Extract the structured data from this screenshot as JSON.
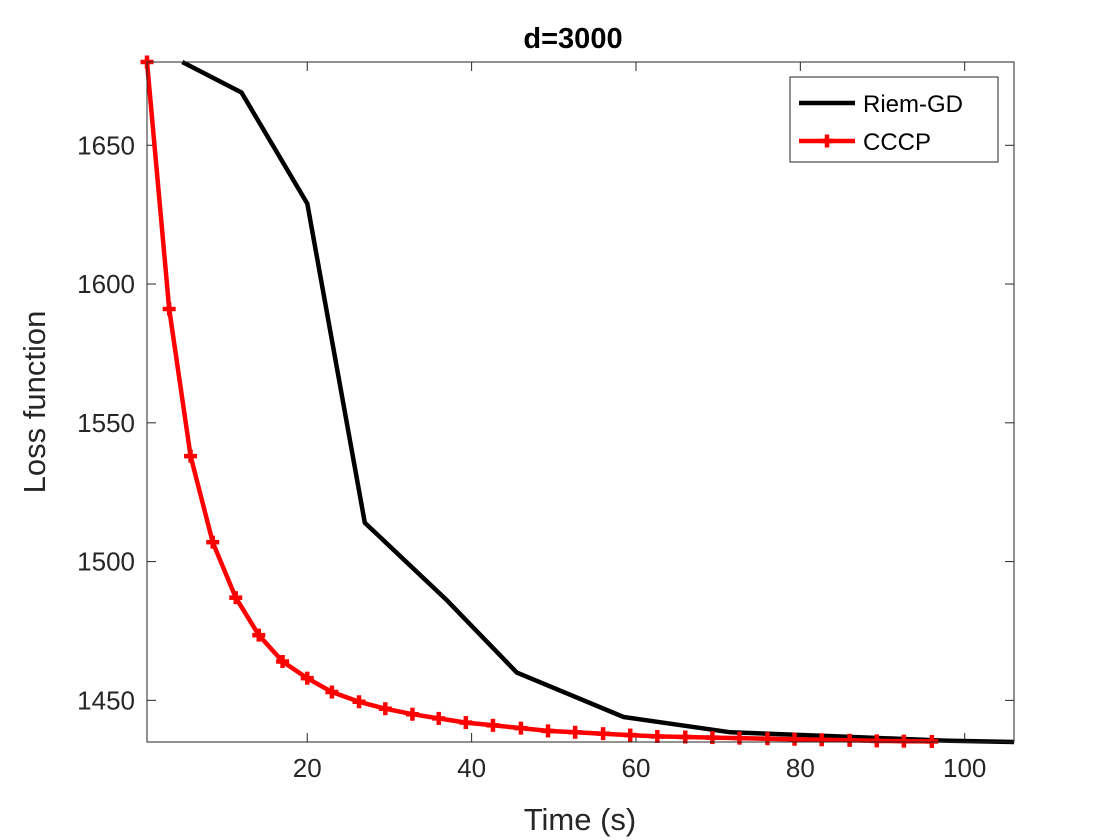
{
  "chart_data": {
    "type": "line",
    "title": "d=3000",
    "xlabel": "Time (s)",
    "ylabel": "Loss function",
    "xlim": [
      0.5,
      106
    ],
    "ylim": [
      1435,
      1680
    ],
    "xticks": [
      20,
      40,
      60,
      80,
      100
    ],
    "yticks": [
      1450,
      1500,
      1550,
      1600,
      1650
    ],
    "legend_position": "top-right",
    "series": [
      {
        "name": "Riem-GD",
        "color": "#000000",
        "marker": "none",
        "x": [
          4.8,
          12,
          20,
          27,
          37,
          45.5,
          58.5,
          71.5,
          84.5,
          97.5,
          106
        ],
        "y": [
          1680,
          1669,
          1629,
          1514,
          1486,
          1460,
          1444,
          1438.5,
          1437,
          1435.5,
          1435
        ]
      },
      {
        "name": "CCCP",
        "color": "#ff0000",
        "marker": "plus",
        "x": [
          0.5,
          3.2,
          5.8,
          8.5,
          11.3,
          14.1,
          17,
          20,
          23,
          26.3,
          29.5,
          32.8,
          36,
          39.3,
          42.6,
          46,
          49.3,
          52.6,
          56,
          59.3,
          62.6,
          66,
          69.3,
          72.6,
          76,
          79.3,
          82.6,
          86,
          89.3,
          92.6,
          96
        ],
        "y": [
          1680,
          1591,
          1538,
          1507,
          1487,
          1473.5,
          1464,
          1458,
          1453,
          1449.5,
          1447,
          1445,
          1443.5,
          1442,
          1441,
          1440,
          1439,
          1438.5,
          1438,
          1437.5,
          1437,
          1436.8,
          1436.6,
          1436.4,
          1436.2,
          1436,
          1435.8,
          1435.6,
          1435.4,
          1435.3,
          1435.2
        ]
      }
    ]
  }
}
